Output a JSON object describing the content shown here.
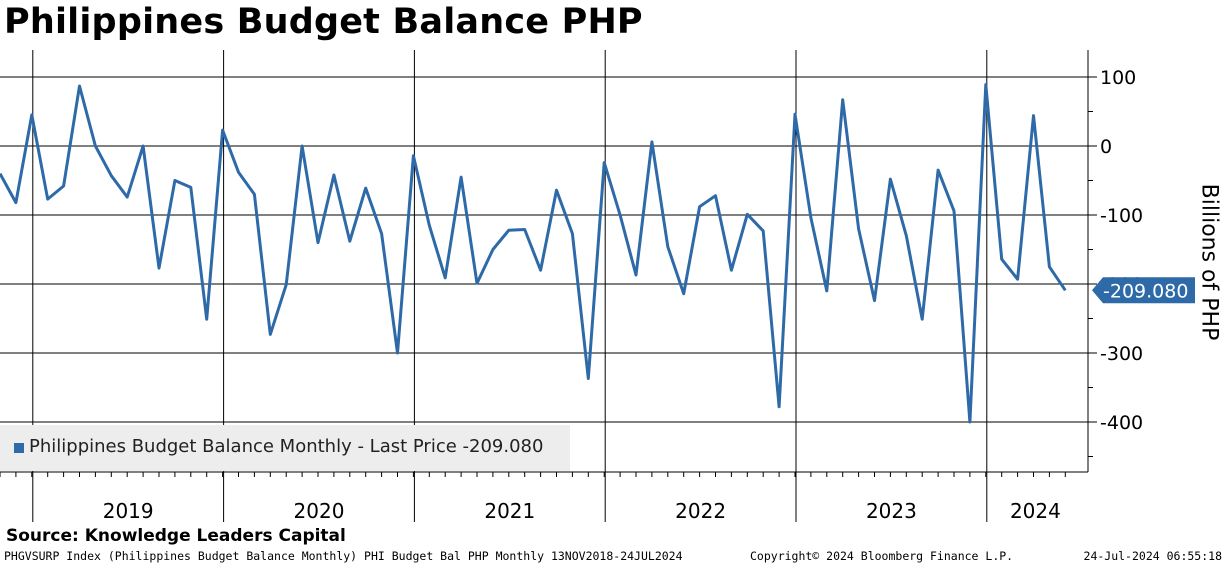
{
  "title": "Philippines Budget Balance PHP",
  "source": "Source: Knowledge Leaders Capital",
  "footer": {
    "left": "PHGVSURP Index (Philippines Budget Balance Monthly) PHI Budget Bal PHP  Monthly 13NOV2018-24JUL2024",
    "center": "Copyright© 2024 Bloomberg Finance L.P.",
    "right": "24-Jul-2024 06:55:18"
  },
  "colors": {
    "series": "#2e6aa8",
    "grid": "#000000",
    "legend_bg": "#ededed"
  },
  "chart_data": {
    "type": "line",
    "xlabel": "",
    "ylabel": "Billions of PHP",
    "ylim": [
      -470,
      115
    ],
    "yticks": [
      100,
      0,
      -100,
      -200,
      -300,
      -400
    ],
    "year_labels": [
      "2019",
      "2020",
      "2021",
      "2022",
      "2023",
      "2024"
    ],
    "last_value_label": "-209.080",
    "legend": "Philippines Budget Balance Monthly - Last Price -209.080",
    "series": [
      {
        "name": "Philippines Budget Balance Monthly",
        "x": [
          "2018-11",
          "2018-12",
          "2019-01",
          "2019-02",
          "2019-03",
          "2019-04",
          "2019-05",
          "2019-06",
          "2019-07",
          "2019-08",
          "2019-09",
          "2019-10",
          "2019-11",
          "2019-12",
          "2020-01",
          "2020-02",
          "2020-03",
          "2020-04",
          "2020-05",
          "2020-06",
          "2020-07",
          "2020-08",
          "2020-09",
          "2020-10",
          "2020-11",
          "2020-12",
          "2021-01",
          "2021-02",
          "2021-03",
          "2021-04",
          "2021-05",
          "2021-06",
          "2021-07",
          "2021-08",
          "2021-09",
          "2021-10",
          "2021-11",
          "2021-12",
          "2022-01",
          "2022-02",
          "2022-03",
          "2022-04",
          "2022-05",
          "2022-06",
          "2022-07",
          "2022-08",
          "2022-09",
          "2022-10",
          "2022-11",
          "2022-12",
          "2023-01",
          "2023-02",
          "2023-03",
          "2023-04",
          "2023-05",
          "2023-06",
          "2023-07",
          "2023-08",
          "2023-09",
          "2023-10",
          "2023-11",
          "2023-12",
          "2024-01",
          "2024-02",
          "2024-03",
          "2024-04",
          "2024-05",
          "2024-06"
        ],
        "values": [
          -40,
          -82,
          45,
          -77,
          -58,
          87,
          0,
          -43,
          -74,
          0,
          -177,
          -50,
          -60,
          -251,
          23,
          -38,
          -70,
          -273,
          -201,
          0,
          -140,
          -42,
          -138,
          -61,
          -127,
          -300,
          -14,
          -115,
          -191,
          -45,
          -199,
          -150,
          -122,
          -121,
          -180,
          -64,
          -127,
          -337,
          -24,
          -100,
          -187,
          6,
          -146,
          -214,
          -88,
          -72,
          -180,
          -99,
          -123,
          -378,
          46,
          -104,
          -210,
          67,
          -120,
          -224,
          -48,
          -130,
          -251,
          -35,
          -94,
          -400,
          89,
          -164,
          -193,
          44,
          -175,
          -209.08
        ]
      }
    ]
  }
}
